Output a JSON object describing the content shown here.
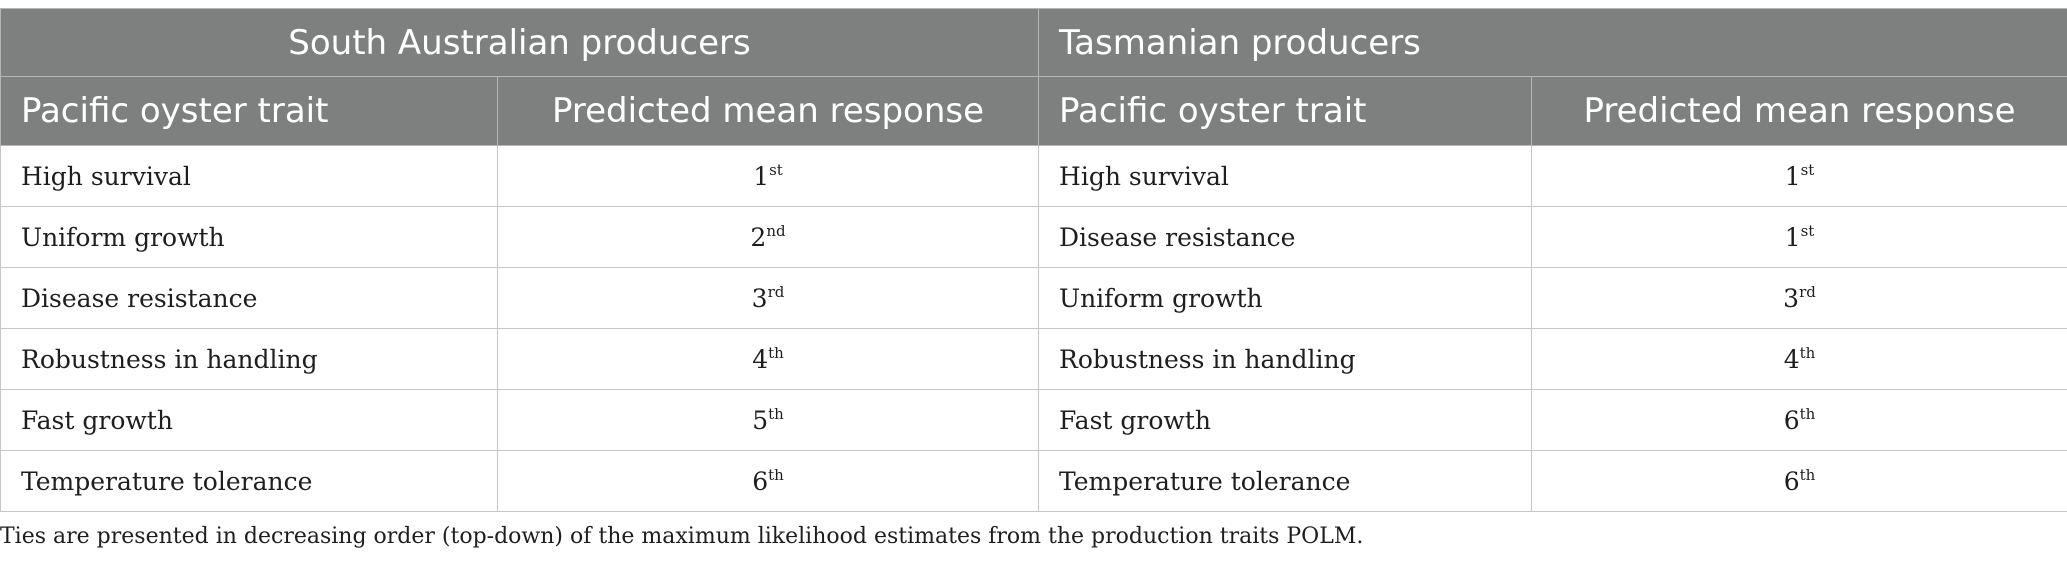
{
  "header": {
    "group_sa": "South Australian producers",
    "group_tas": "Tasmanian producers",
    "col_trait": "Pacific oyster trait",
    "col_response": "Predicted mean response"
  },
  "rows": [
    {
      "sa_trait": "High survival",
      "sa_num": "1",
      "sa_suf": "st",
      "tas_trait": "High survival",
      "tas_num": "1",
      "tas_suf": "st"
    },
    {
      "sa_trait": "Uniform growth",
      "sa_num": "2",
      "sa_suf": "nd",
      "tas_trait": "Disease resistance",
      "tas_num": "1",
      "tas_suf": "st"
    },
    {
      "sa_trait": "Disease resistance",
      "sa_num": "3",
      "sa_suf": "rd",
      "tas_trait": "Uniform growth",
      "tas_num": "3",
      "tas_suf": "rd"
    },
    {
      "sa_trait": "Robustness in handling",
      "sa_num": "4",
      "sa_suf": "th",
      "tas_trait": "Robustness in handling",
      "tas_num": "4",
      "tas_suf": "th"
    },
    {
      "sa_trait": "Fast growth",
      "sa_num": "5",
      "sa_suf": "th",
      "tas_trait": "Fast growth",
      "tas_num": "6",
      "tas_suf": "th"
    },
    {
      "sa_trait": "Temperature tolerance",
      "sa_num": "6",
      "sa_suf": "th",
      "tas_trait": "Temperature tolerance",
      "tas_num": "6",
      "tas_suf": "th"
    }
  ],
  "footnote": "Ties are presented in decreasing order (top-down) of the maximum likelihood estimates from the production traits POLM.",
  "colors": {
    "header_bg": "#7e807f",
    "header_text": "#ffffff",
    "body_text": "#1e1e1e",
    "grid_line": "#c7c7c7"
  }
}
